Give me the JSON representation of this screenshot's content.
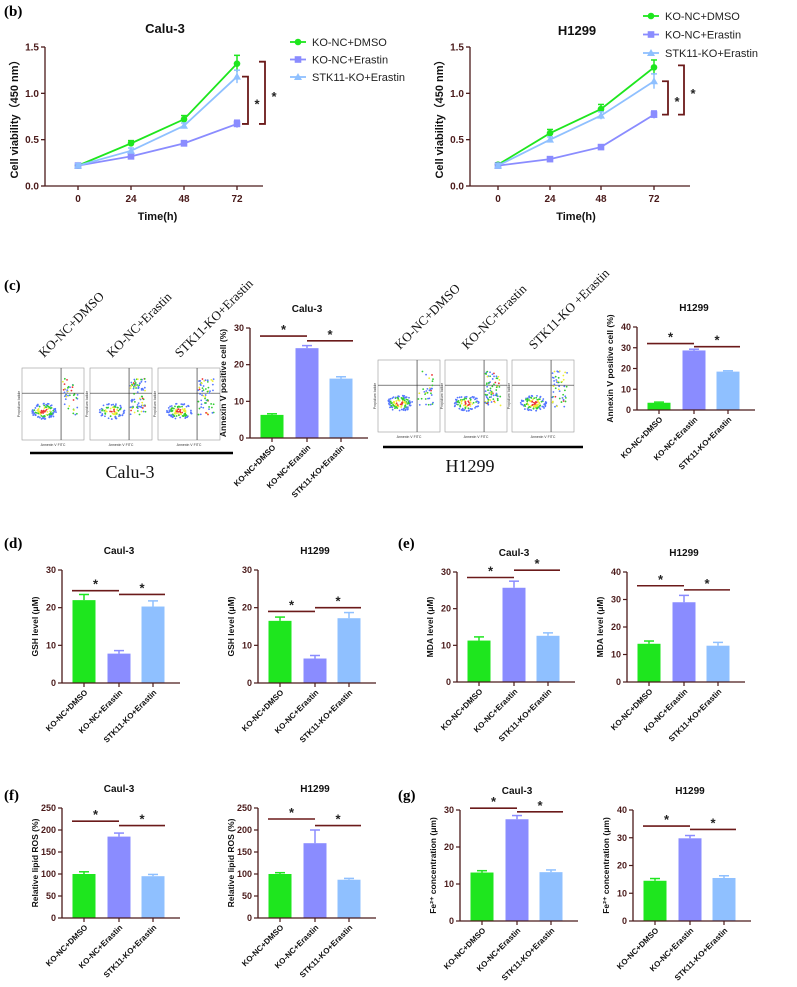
{
  "panels": {
    "b": "(b)",
    "c": "(c)",
    "d": "(d)",
    "e": "(e)",
    "f": "(f)",
    "g": "(g)"
  },
  "colors": {
    "dmso": "#1ee61e",
    "erastin": "#8a8cff",
    "stk11": "#8fc0ff",
    "axis": "#4a1a1a",
    "sig": "#6b1a1a"
  },
  "groups": [
    "KO-NC+DMSO",
    "KO-NC+Erastin",
    "STK11-KO+Erastin"
  ],
  "flow": {
    "xlabel": "Annexin V FITC",
    "ylabel": "Propidium Iodide",
    "sets": [
      {
        "cell_line": "Calu-3",
        "labels": [
          "KO-NC+DMSO",
          "KO-NC+Erastin",
          "STK11-KO+Erastin"
        ]
      },
      {
        "cell_line": "H1299",
        "labels": [
          "KO-NC+DMSO",
          "KO-NC+Erastin",
          "STK11-KO +Erastin"
        ]
      }
    ]
  },
  "chart_data": [
    {
      "id": "b1",
      "type": "line",
      "title": "Calu-3",
      "xlabel": "Time(h)",
      "ylabel": "Cell viability（450 nm）",
      "x": [
        0,
        24,
        48,
        72
      ],
      "ylim": [
        0,
        1.5
      ],
      "yticks": [
        "0.0",
        "0.5",
        "1.0",
        "1.5"
      ],
      "legend": "right",
      "series": [
        {
          "name": "KO-NC+DMSO",
          "marker": "circle",
          "values": [
            0.22,
            0.46,
            0.72,
            1.32
          ],
          "err": [
            0.02,
            0.03,
            0.04,
            0.09
          ]
        },
        {
          "name": "KO-NC+Erastin",
          "marker": "square",
          "values": [
            0.22,
            0.32,
            0.46,
            0.67
          ],
          "err": [
            0.02,
            0.02,
            0.03,
            0.04
          ]
        },
        {
          "name": "STK11-KO+Erastin",
          "marker": "triangle",
          "values": [
            0.22,
            0.38,
            0.65,
            1.18
          ],
          "err": [
            0.02,
            0.03,
            0.03,
            0.07
          ]
        }
      ],
      "significance": [
        "*",
        "*"
      ]
    },
    {
      "id": "b2",
      "type": "line",
      "title": "H1299",
      "xlabel": "Time(h)",
      "ylabel": "Cell viability（450 nm）",
      "x": [
        0,
        24,
        48,
        72
      ],
      "ylim": [
        0,
        1.5
      ],
      "yticks": [
        "0.0",
        "0.5",
        "1.0",
        "1.5"
      ],
      "legend": "top",
      "series": [
        {
          "name": "KO-NC+DMSO",
          "marker": "circle",
          "values": [
            0.23,
            0.57,
            0.83,
            1.28
          ],
          "err": [
            0.02,
            0.04,
            0.05,
            0.08
          ]
        },
        {
          "name": "KO-NC+Erastin",
          "marker": "square",
          "values": [
            0.22,
            0.29,
            0.42,
            0.77
          ],
          "err": [
            0.02,
            0.02,
            0.02,
            0.04
          ]
        },
        {
          "name": "STK11-KO+Erastin",
          "marker": "triangle",
          "values": [
            0.22,
            0.5,
            0.76,
            1.13
          ],
          "err": [
            0.02,
            0.03,
            0.04,
            0.08
          ]
        }
      ],
      "significance": [
        "*",
        "*"
      ]
    },
    {
      "id": "c1",
      "type": "bar",
      "title": "Calu-3",
      "ylabel": "Annexin V positive cell (%)",
      "ylim": [
        0,
        30
      ],
      "yticks": [
        0,
        10,
        20,
        30
      ],
      "categories": [
        "KO-NC+DMSO",
        "KO-NC+Erastin",
        "STK11-KO+Erastin"
      ],
      "values": [
        6.3,
        24.5,
        16.2
      ],
      "err": [
        0.3,
        0.7,
        0.5
      ],
      "significance": [
        {
          "label": "*",
          "y": 27.8
        },
        {
          "label": "*",
          "y": 26.5
        }
      ]
    },
    {
      "id": "c2",
      "type": "bar",
      "title": "H1299",
      "ylabel": "Annexin V positive cell (%)",
      "ylim": [
        0,
        40
      ],
      "yticks": [
        0,
        10,
        20,
        30,
        40
      ],
      "categories": [
        "KO-NC+DMSO",
        "KO-NC+Erastin",
        "STK11-KO+Erastin"
      ],
      "values": [
        3.5,
        28.7,
        18.5
      ],
      "err": [
        0.3,
        0.6,
        0.4
      ],
      "significance": [
        {
          "label": "*",
          "y": 32
        },
        {
          "label": "*",
          "y": 30.5
        }
      ]
    },
    {
      "id": "d1",
      "type": "bar",
      "title": "Caul-3",
      "ylabel": "GSH level (μM)",
      "ylim": [
        0,
        30
      ],
      "yticks": [
        0,
        10,
        20,
        30
      ],
      "categories": [
        "KO-NC+DMSO",
        "KO-NC+Erastin",
        "STK11-KO+Erastin"
      ],
      "values": [
        22,
        7.8,
        20.3
      ],
      "err": [
        1.5,
        0.8,
        1.5
      ],
      "significance": [
        {
          "label": "*",
          "y": 24.5
        },
        {
          "label": "*",
          "y": 23.5
        }
      ]
    },
    {
      "id": "d2",
      "type": "bar",
      "title": "H1299",
      "ylabel": "GSH level (μM)",
      "ylim": [
        0,
        30
      ],
      "yticks": [
        0,
        10,
        20,
        30
      ],
      "categories": [
        "KO-NC+DMSO",
        "KO-NC+Erastin",
        "STK11-KO+Erastin"
      ],
      "values": [
        16.5,
        6.5,
        17.2
      ],
      "err": [
        1,
        0.8,
        1.5
      ],
      "significance": [
        {
          "label": "*",
          "y": 19
        },
        {
          "label": "*",
          "y": 20
        }
      ]
    },
    {
      "id": "e1",
      "type": "bar",
      "title": "Caul-3",
      "ylabel": "MDA level (μM)",
      "ylim": [
        0,
        30
      ],
      "yticks": [
        0,
        10,
        20,
        30
      ],
      "categories": [
        "KO-NC+DMSO",
        "KO-NC+Erastin",
        "STK11-KO+Erastin"
      ],
      "values": [
        11.3,
        25.7,
        12.6
      ],
      "err": [
        1,
        1.8,
        0.8
      ],
      "significance": [
        {
          "label": "*",
          "y": 28.5
        },
        {
          "label": "*",
          "y": 30.5
        }
      ]
    },
    {
      "id": "e2",
      "type": "bar",
      "title": "H1299",
      "ylabel": "MDA level (μM)",
      "ylim": [
        0,
        40
      ],
      "yticks": [
        0,
        10,
        20,
        30,
        40
      ],
      "categories": [
        "KO-NC+DMSO",
        "KO-NC+Erastin",
        "STK11-KO+Erastin"
      ],
      "values": [
        13.9,
        29,
        13.2
      ],
      "err": [
        1,
        2.5,
        1.2
      ],
      "significance": [
        {
          "label": "*",
          "y": 35
        },
        {
          "label": "*",
          "y": 33.5
        }
      ]
    },
    {
      "id": "f1",
      "type": "bar",
      "title": "Caul-3",
      "ylabel": "Relative lipid ROS (%)",
      "ylim": [
        0,
        250
      ],
      "yticks": [
        0,
        50,
        100,
        150,
        200,
        250
      ],
      "categories": [
        "KO-NC+DMSO",
        "KO-NC+Erastin",
        "STK11-KO+Erastin"
      ],
      "values": [
        100,
        185,
        95
      ],
      "err": [
        5,
        8,
        4
      ],
      "significance": [
        {
          "label": "*",
          "y": 220
        },
        {
          "label": "*",
          "y": 210
        }
      ]
    },
    {
      "id": "f2",
      "type": "bar",
      "title": "H1299",
      "ylabel": "Relative lipid ROS (%)",
      "ylim": [
        0,
        250
      ],
      "yticks": [
        0,
        50,
        100,
        150,
        200,
        250
      ],
      "categories": [
        "KO-NC+DMSO",
        "KO-NC+Erastin",
        "STK11-KO+Erastin"
      ],
      "values": [
        100,
        170,
        87
      ],
      "err": [
        3,
        30,
        3
      ],
      "significance": [
        {
          "label": "*",
          "y": 225
        },
        {
          "label": "*",
          "y": 210
        }
      ]
    },
    {
      "id": "g1",
      "type": "bar",
      "title": "Caul-3",
      "ylabel": "Fe²⁺ concentration (μm)",
      "ylim": [
        0,
        30
      ],
      "yticks": [
        0,
        10,
        20,
        30
      ],
      "categories": [
        "KO-NC+DMSO",
        "KO-NC+Erastin",
        "STK11-KO+Erastin"
      ],
      "values": [
        13.1,
        27.5,
        13.2
      ],
      "err": [
        0.5,
        1,
        0.6
      ],
      "significance": [
        {
          "label": "*",
          "y": 30.5
        },
        {
          "label": "*",
          "y": 29.5
        }
      ]
    },
    {
      "id": "g2",
      "type": "bar",
      "title": "H1299",
      "ylabel": "Fe²⁺ concentration (μm)",
      "ylim": [
        0,
        40
      ],
      "yticks": [
        0,
        10,
        20,
        30,
        40
      ],
      "categories": [
        "KO-NC+DMSO",
        "KO-NC+Erastin",
        "STK11-KO+Erastin"
      ],
      "values": [
        14.5,
        29.8,
        15.5
      ],
      "err": [
        0.8,
        1,
        0.8
      ],
      "significance": [
        {
          "label": "*",
          "y": 34.2
        },
        {
          "label": "*",
          "y": 33
        }
      ]
    }
  ]
}
